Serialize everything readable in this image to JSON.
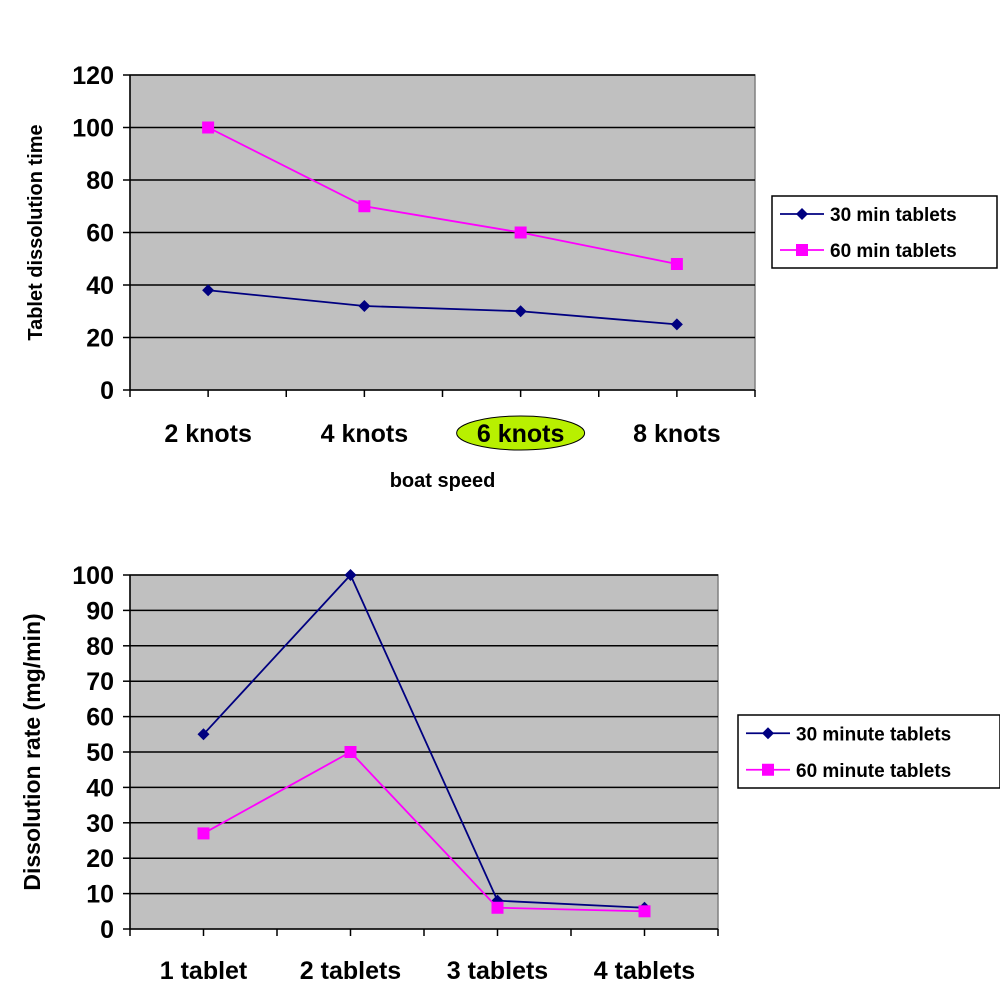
{
  "chart_data": [
    {
      "type": "line",
      "title": "",
      "xlabel": "boat speed",
      "ylabel": "Tablet dissolution time",
      "categories": [
        "2 knots",
        "4 knots",
        "6 knots",
        "8 knots"
      ],
      "highlighted_category": "6 knots",
      "highlight_color": "#b8f000",
      "ylim": [
        0,
        120
      ],
      "yticks": [
        "0",
        "20",
        "40",
        "60",
        "80",
        "100",
        "120"
      ],
      "grid": true,
      "plot_background": "#c0c0c0",
      "legend_placement": "right",
      "series": [
        {
          "name": "30 min tablets",
          "values": [
            38,
            32,
            30,
            25
          ],
          "color": "#000080",
          "marker": "diamond"
        },
        {
          "name": "60 min tablets",
          "values": [
            100,
            70,
            60,
            48
          ],
          "color": "#ff00ff",
          "marker": "square"
        }
      ]
    },
    {
      "type": "line",
      "title": "",
      "xlabel": "",
      "ylabel": "Dissolution rate (mg/min)",
      "categories": [
        "1 tablet",
        "2 tablets",
        "3 tablets",
        "4 tablets"
      ],
      "ylim": [
        0,
        100
      ],
      "yticks": [
        "0",
        "10",
        "20",
        "30",
        "40",
        "50",
        "60",
        "70",
        "80",
        "90",
        "100"
      ],
      "grid": true,
      "plot_background": "#c0c0c0",
      "legend_placement": "right",
      "series": [
        {
          "name": "30 minute tablets",
          "values": [
            55,
            100,
            8,
            6
          ],
          "color": "#000080",
          "marker": "diamond"
        },
        {
          "name": "60 minute tablets",
          "values": [
            27,
            50,
            6,
            5
          ],
          "color": "#ff00ff",
          "marker": "square"
        }
      ]
    }
  ]
}
